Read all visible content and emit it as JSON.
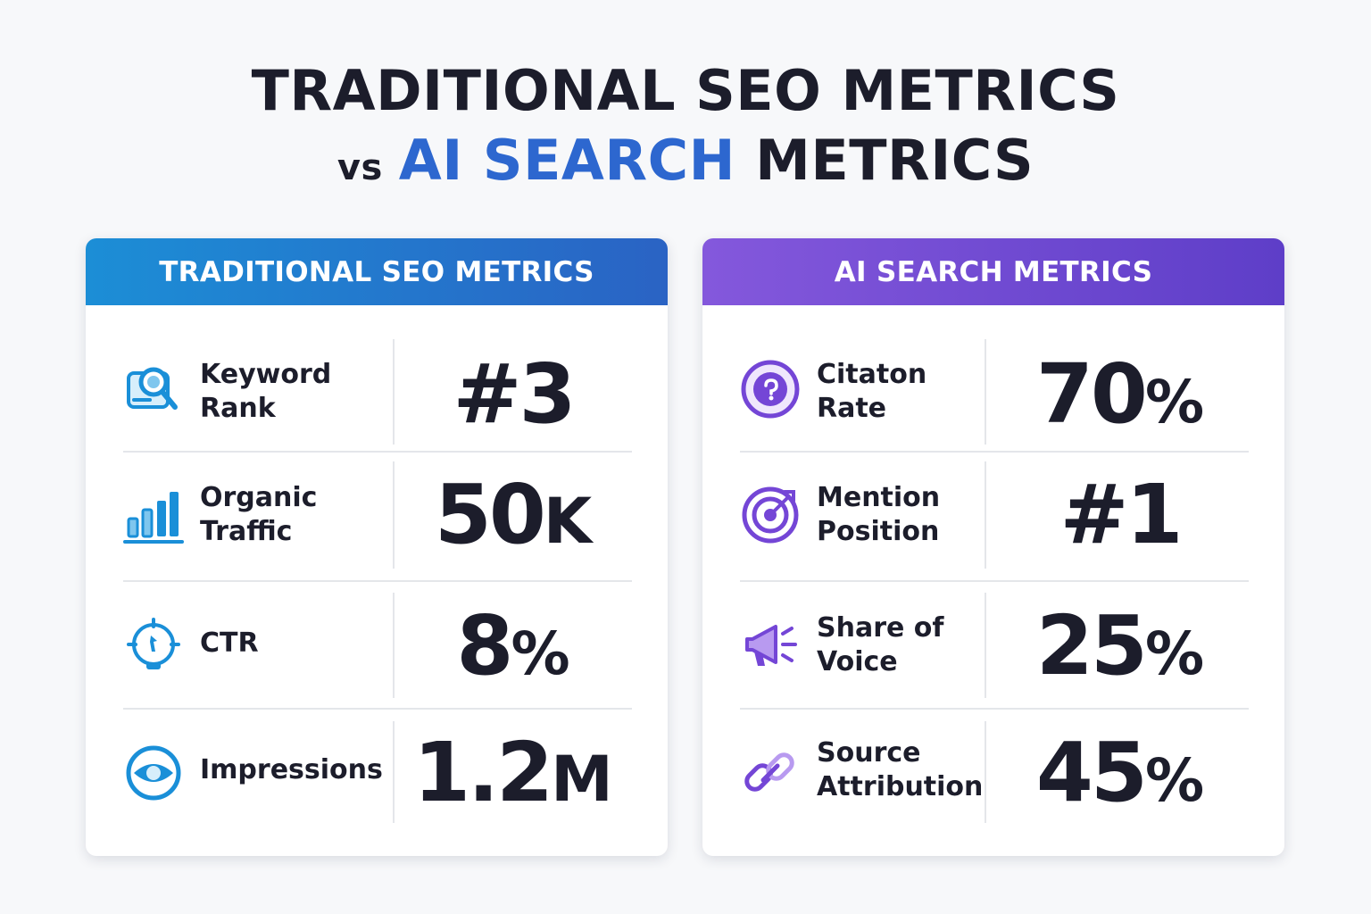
{
  "title": {
    "line1": "TRADITIONAL SEO METRICS",
    "vs": "vs",
    "accent": "AI SEARCH",
    "line2_rest": "METRICS"
  },
  "colors": {
    "dark": "#1c1d2b",
    "accent_blue": "#2d67cf",
    "seo_icon": "#1a8fd8",
    "ai_icon": "#7446d6"
  },
  "traditional": {
    "header": "TRADITIONAL SEO METRICS",
    "rows": [
      {
        "label_1": "Keyword",
        "label_2": "Rank",
        "value_main": "#3",
        "value_suffix": "",
        "icon": "keyword-search-icon"
      },
      {
        "label_1": "Organic",
        "label_2": "Traffic",
        "value_main": "50",
        "value_suffix": "K",
        "icon": "bar-chart-icon"
      },
      {
        "label_1": "CTR",
        "label_2": "",
        "value_main": "8",
        "value_suffix": "%",
        "icon": "cursor-click-icon"
      },
      {
        "label_1": "Impressions",
        "label_2": "",
        "value_main": "1.2",
        "value_suffix": "M",
        "icon": "eye-icon"
      }
    ]
  },
  "ai": {
    "header": "AI SEARCH METRICS",
    "rows": [
      {
        "label_1": "Citaton",
        "label_2": "Rate",
        "value_main": "70",
        "value_suffix": "%",
        "icon": "quote-circle-icon"
      },
      {
        "label_1": "Mention",
        "label_2": "Position",
        "value_main": "#1",
        "value_suffix": "",
        "icon": "target-icon"
      },
      {
        "label_1": "Share of",
        "label_2": "Voice",
        "value_main": "25",
        "value_suffix": "%",
        "icon": "megaphone-icon"
      },
      {
        "label_1": "Source",
        "label_2": "Attribution",
        "value_main": "45",
        "value_suffix": "%",
        "icon": "link-icon"
      }
    ]
  }
}
